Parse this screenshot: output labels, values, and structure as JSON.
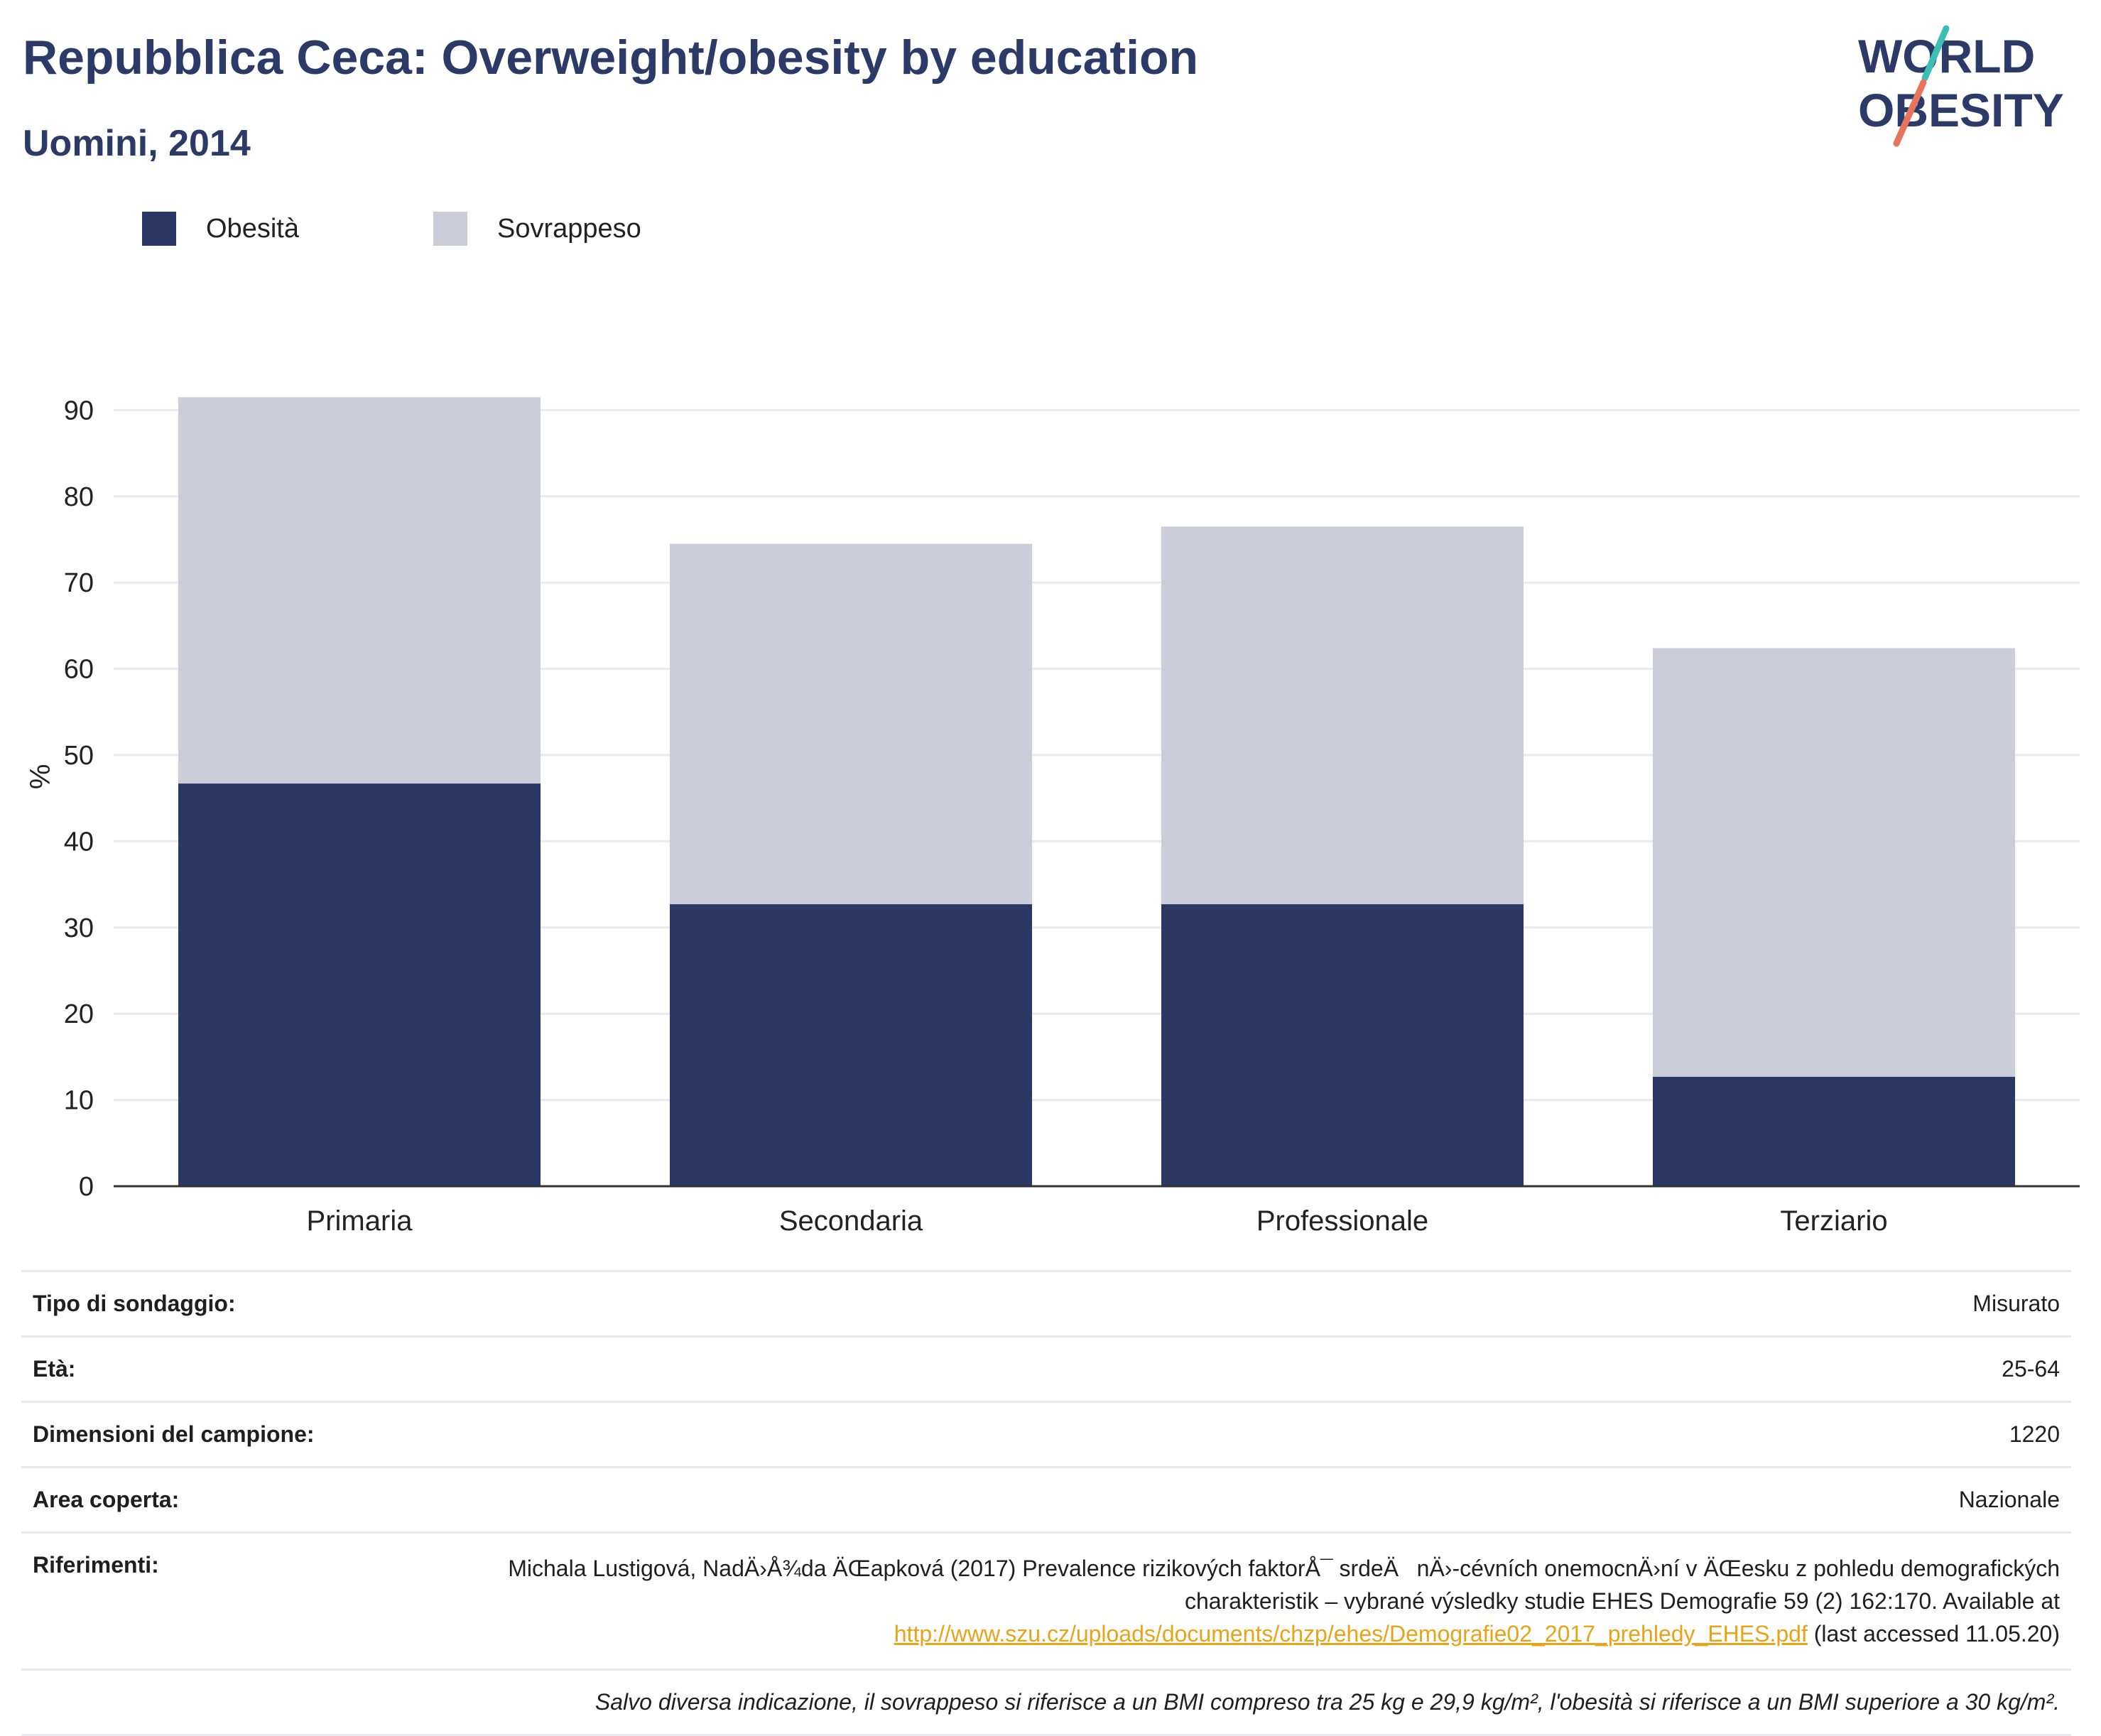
{
  "header": {
    "title": "Repubblica Ceca: Overweight/obesity by education",
    "subtitle": "Uomini, 2014"
  },
  "logo": {
    "line1": "WORLD",
    "line2": "OBESITY"
  },
  "colors": {
    "obesity": "#2b3764",
    "overweight": "#cacdd8",
    "title": "#2b3a67",
    "logo_teal": "#3bbfb5",
    "logo_coral": "#e8735f",
    "link": "#e8a317"
  },
  "chart_data": {
    "type": "bar",
    "stacked": true,
    "categories": [
      "Primaria",
      "Secondaria",
      "Professionale",
      "Terziario"
    ],
    "series": [
      {
        "name": "Obesità",
        "values": [
          46.7,
          32.7,
          32.7,
          12.7
        ]
      },
      {
        "name": "Sovrappeso",
        "values": [
          44.8,
          41.8,
          43.8,
          49.7
        ]
      }
    ],
    "ylabel": "%",
    "ylim": [
      0,
      95
    ],
    "yticks": [
      0,
      10,
      20,
      30,
      40,
      50,
      60,
      70,
      80,
      90
    ],
    "grid": true,
    "legend": "top-left"
  },
  "info": {
    "survey_type": {
      "label": "Tipo di sondaggio:",
      "value": "Misurato"
    },
    "age": {
      "label": "Età:",
      "value": "25-64"
    },
    "sample_size": {
      "label": "Dimensioni del campione:",
      "value": "1220"
    },
    "area": {
      "label": "Area coperta:",
      "value": "Nazionale"
    },
    "references": {
      "label": "Riferimenti:",
      "text": "Michala Lustigová, NadÄ›Å¾da ÄŒapková (2017) Prevalence rizikových faktorÅ¯ srdeÄnÄ›-cévních onemocnÄ›ní v ÄŒesku z pohledu demografických charakteristik – vybrané výsledky studie EHES Demografie 59 (2) 162:170. Available at",
      "link": "http://www.szu.cz/uploads/documents/chzp/ehes/Demografie02_2017_prehledy_EHES.pdf",
      "suffix": "(last accessed 11.05.20)"
    },
    "note": "Salvo diversa indicazione, il sovrappeso si riferisce a un BMI compreso tra 25 kg e 29,9 kg/m², l'obesità si riferisce a un BMI superiore a 30 kg/m²."
  }
}
